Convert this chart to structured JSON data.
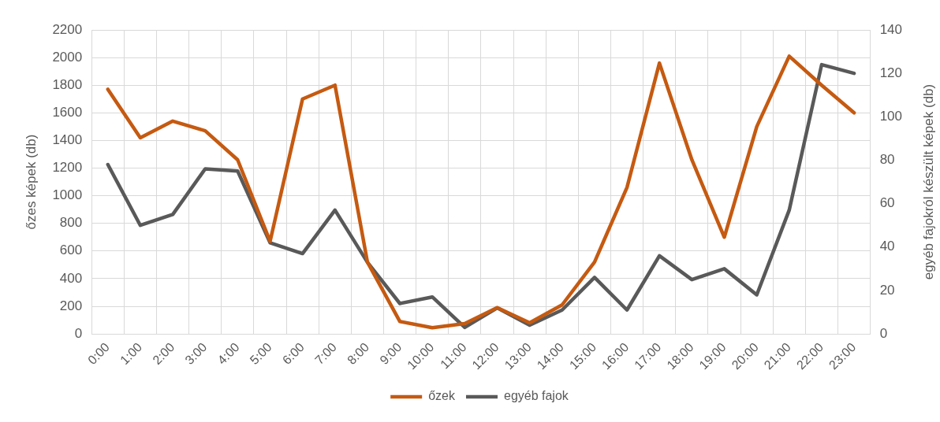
{
  "chart_data": {
    "type": "line",
    "categories": [
      "0:00",
      "1:00",
      "2:00",
      "3:00",
      "4:00",
      "5:00",
      "6:00",
      "7:00",
      "8:00",
      "9:00",
      "10:00",
      "11:00",
      "12:00",
      "13:00",
      "14:00",
      "15:00",
      "16:00",
      "17:00",
      "18:00",
      "19:00",
      "20:00",
      "21:00",
      "22:00",
      "23:00"
    ],
    "ylabel": "őzes képek (db)",
    "y2label": "egyéb fajokról készült képek (db)",
    "ylim": [
      0,
      2200
    ],
    "yticks": [
      0,
      200,
      400,
      600,
      800,
      1000,
      1200,
      1400,
      1600,
      1800,
      2000,
      2200
    ],
    "y2lim": [
      0,
      140
    ],
    "y2ticks": [
      0,
      20,
      40,
      60,
      80,
      100,
      120,
      140
    ],
    "series": [
      {
        "name": "őzek",
        "color": "#c55a11",
        "values": [
          1770,
          1420,
          1540,
          1470,
          1260,
          670,
          1700,
          1800,
          520,
          90,
          45,
          75,
          190,
          80,
          210,
          520,
          1060,
          1960,
          1260,
          700,
          1500,
          2010,
          1800,
          1600
        ]
      },
      {
        "name": "egyéb fajok",
        "color": "#595959",
        "axis": "y2",
        "values": [
          78,
          50,
          55,
          76,
          75,
          42,
          37,
          57,
          33,
          14,
          17,
          3,
          12,
          4,
          11,
          26,
          11,
          36,
          25,
          30,
          18,
          57,
          124,
          120
        ]
      }
    ],
    "grid": true,
    "legend": "bottom",
    "marker": "none",
    "line_style": "solid"
  }
}
